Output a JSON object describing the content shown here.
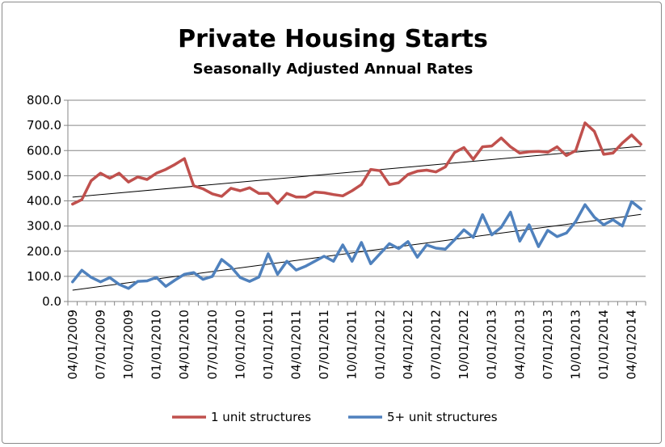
{
  "chart_data": {
    "type": "line",
    "title": "Private Housing Starts",
    "subtitle": "Seasonally Adjusted Annual Rates",
    "xlabel": "",
    "ylabel": "",
    "ylim": [
      0,
      800
    ],
    "y_ticks": [
      "0.0",
      "100.0",
      "200.0",
      "300.0",
      "400.0",
      "500.0",
      "600.0",
      "700.0",
      "800.0"
    ],
    "x_tick_labels": [
      "04/01/2009",
      "07/01/2009",
      "10/01/2009",
      "01/01/2010",
      "04/01/2010",
      "07/01/2010",
      "10/01/2010",
      "01/01/2011",
      "04/01/2011",
      "07/01/2011",
      "10/01/2011",
      "01/01/2012",
      "04/01/2012",
      "07/01/2012",
      "10/01/2012",
      "01/01/2013",
      "04/01/2013",
      "07/01/2013",
      "10/01/2013",
      "01/01/2014",
      "04/01/2014"
    ],
    "x": [
      "2009-04",
      "2009-05",
      "2009-06",
      "2009-07",
      "2009-08",
      "2009-09",
      "2009-10",
      "2009-11",
      "2009-12",
      "2010-01",
      "2010-02",
      "2010-03",
      "2010-04",
      "2010-05",
      "2010-06",
      "2010-07",
      "2010-08",
      "2010-09",
      "2010-10",
      "2010-11",
      "2010-12",
      "2011-01",
      "2011-02",
      "2011-03",
      "2011-04",
      "2011-05",
      "2011-06",
      "2011-07",
      "2011-08",
      "2011-09",
      "2011-10",
      "2011-11",
      "2011-12",
      "2012-01",
      "2012-02",
      "2012-03",
      "2012-04",
      "2012-05",
      "2012-06",
      "2012-07",
      "2012-08",
      "2012-09",
      "2012-10",
      "2012-11",
      "2012-12",
      "2013-01",
      "2013-02",
      "2013-03",
      "2013-04",
      "2013-05",
      "2013-06",
      "2013-07",
      "2013-08",
      "2013-09",
      "2013-10",
      "2013-11",
      "2013-12",
      "2014-01",
      "2014-02",
      "2014-03",
      "2014-04",
      "2014-05"
    ],
    "grid": "horizontal",
    "legend_position": "bottom",
    "series": [
      {
        "name": "1 unit structures",
        "color": "#c0504d",
        "values": [
          387,
          405,
          480,
          510,
          490,
          510,
          475,
          495,
          485,
          510,
          525,
          545,
          568,
          460,
          448,
          428,
          418,
          450,
          440,
          452,
          430,
          430,
          390,
          430,
          415,
          415,
          435,
          432,
          425,
          420,
          440,
          465,
          525,
          520,
          465,
          472,
          505,
          518,
          522,
          515,
          535,
          592,
          612,
          565,
          615,
          618,
          650,
          615,
          590,
          595,
          597,
          593,
          615,
          580,
          600,
          710,
          676,
          585,
          590,
          630,
          662,
          625
        ],
        "trendline": [
          415,
          617
        ]
      },
      {
        "name": "5+ unit structures",
        "color": "#4f81bd",
        "values": [
          78,
          124,
          96,
          78,
          95,
          68,
          52,
          80,
          82,
          96,
          60,
          85,
          108,
          115,
          88,
          100,
          167,
          138,
          95,
          80,
          97,
          190,
          108,
          160,
          125,
          140,
          160,
          180,
          160,
          225,
          160,
          235,
          150,
          190,
          230,
          210,
          238,
          176,
          225,
          212,
          208,
          245,
          285,
          255,
          345,
          265,
          295,
          355,
          240,
          305,
          218,
          283,
          258,
          272,
          318,
          385,
          335,
          305,
          325,
          300,
          397,
          368
        ],
        "trendline": [
          45,
          346
        ]
      }
    ]
  }
}
